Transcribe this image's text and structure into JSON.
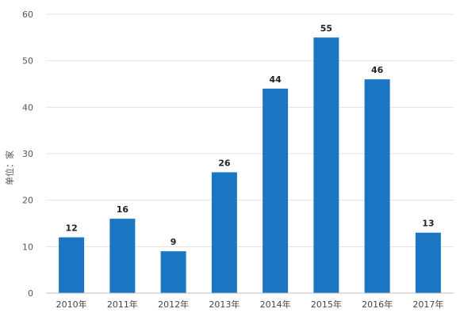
{
  "chart_data": {
    "type": "bar",
    "categories": [
      "2010年",
      "2011年",
      "2012年",
      "2013年",
      "2014年",
      "2015年",
      "2016年",
      "2017年"
    ],
    "values": [
      12,
      16,
      9,
      26,
      44,
      55,
      46,
      13
    ],
    "ylabel": "单位：家",
    "ylim": [
      0,
      60
    ],
    "yticks": [
      0,
      10,
      20,
      30,
      40,
      50,
      60
    ],
    "grid": true,
    "bar_color": "#1a75c2",
    "data_labels": true
  }
}
